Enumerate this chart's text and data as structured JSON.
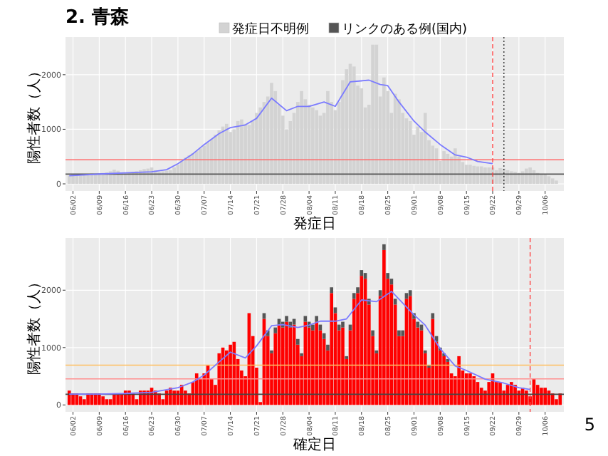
{
  "chart_data": [
    {
      "type": "bar",
      "title": "2. 青森",
      "xlabel": "発症日",
      "ylabel": "陽性者数（人）",
      "legend": "top",
      "grid": true,
      "xlim": [
        "--05-31",
        "--10-11"
      ],
      "ylim": [
        -130,
        2690
      ],
      "yticks": [
        0,
        1000,
        2000
      ],
      "xticks": [
        {
          "value": "--06-02",
          "label": "06/02"
        },
        {
          "value": "--06-09",
          "label": "06/09"
        },
        {
          "value": "--06-16",
          "label": "06/16"
        },
        {
          "value": "--06-23",
          "label": "06/23"
        },
        {
          "value": "--06-30",
          "label": "06/30"
        },
        {
          "value": "--07-07",
          "label": "07/07"
        },
        {
          "value": "--07-14",
          "label": "07/14"
        },
        {
          "value": "--07-21",
          "label": "07/21"
        },
        {
          "value": "--07-28",
          "label": "07/28"
        },
        {
          "value": "--08-04",
          "label": "08/04"
        },
        {
          "value": "--08-11",
          "label": "08/11"
        },
        {
          "value": "--08-18",
          "label": "08/18"
        },
        {
          "value": "--08-25",
          "label": "08/25"
        },
        {
          "value": "--09-01",
          "label": "09/01"
        },
        {
          "value": "--09-08",
          "label": "09/08"
        },
        {
          "value": "--09-15",
          "label": "09/15"
        },
        {
          "value": "--09-22",
          "label": "09/22"
        },
        {
          "value": "--09-29",
          "label": "09/29"
        },
        {
          "value": "--10-06",
          "label": "10/06"
        }
      ],
      "x": [
        "--06-01",
        "--06-02",
        "--06-03",
        "--06-04",
        "--06-05",
        "--06-06",
        "--06-07",
        "--06-08",
        "--06-09",
        "--06-10",
        "--06-11",
        "--06-12",
        "--06-13",
        "--06-14",
        "--06-15",
        "--06-16",
        "--06-17",
        "--06-18",
        "--06-19",
        "--06-20",
        "--06-21",
        "--06-22",
        "--06-23",
        "--06-24",
        "--06-25",
        "--06-26",
        "--06-27",
        "--06-28",
        "--06-29",
        "--06-30",
        "--07-01",
        "--07-02",
        "--07-03",
        "--07-04",
        "--07-05",
        "--07-06",
        "--07-07",
        "--07-08",
        "--07-09",
        "--07-10",
        "--07-11",
        "--07-12",
        "--07-13",
        "--07-14",
        "--07-15",
        "--07-16",
        "--07-17",
        "--07-18",
        "--07-19",
        "--07-20",
        "--07-21",
        "--07-22",
        "--07-23",
        "--07-24",
        "--07-25",
        "--07-26",
        "--07-27",
        "--07-28",
        "--07-29",
        "--07-30",
        "--07-31",
        "--08-01",
        "--08-02",
        "--08-03",
        "--08-04",
        "--08-05",
        "--08-06",
        "--08-07",
        "--08-08",
        "--08-09",
        "--08-10",
        "--08-11",
        "--08-12",
        "--08-13",
        "--08-14",
        "--08-15",
        "--08-16",
        "--08-17",
        "--08-18",
        "--08-19",
        "--08-20",
        "--08-21",
        "--08-22",
        "--08-23",
        "--08-24",
        "--08-25",
        "--08-26",
        "--08-27",
        "--08-28",
        "--08-29",
        "--08-30",
        "--08-31",
        "--09-01",
        "--09-02",
        "--09-03",
        "--09-04",
        "--09-05",
        "--09-06",
        "--09-07",
        "--09-08",
        "--09-09",
        "--09-10",
        "--09-11",
        "--09-12",
        "--09-13",
        "--09-14",
        "--09-15",
        "--09-16",
        "--09-17",
        "--09-18",
        "--09-19",
        "--09-20",
        "--09-21",
        "--09-22",
        "--09-23",
        "--09-24",
        "--09-25",
        "--09-26",
        "--09-27",
        "--09-28",
        "--09-29",
        "--09-30",
        "--10-01",
        "--10-02",
        "--10-03",
        "--10-04",
        "--10-05",
        "--10-06",
        "--10-07",
        "--10-08",
        "--10-09"
      ],
      "series": [
        {
          "name": "発症日不明例",
          "color": "#d3d3d3",
          "values": [
            150,
            170,
            160,
            150,
            170,
            180,
            190,
            170,
            180,
            200,
            210,
            230,
            260,
            240,
            200,
            190,
            210,
            220,
            230,
            250,
            270,
            280,
            300,
            250,
            220,
            230,
            240,
            250,
            300,
            350,
            420,
            480,
            520,
            560,
            600,
            650,
            700,
            760,
            820,
            900,
            980,
            1050,
            1100,
            950,
            1000,
            1150,
            1180,
            1100,
            1080,
            1150,
            1300,
            1400,
            1500,
            1600,
            1850,
            1700,
            1450,
            1250,
            1000,
            1150,
            1300,
            1500,
            1700,
            1550,
            1450,
            1400,
            1350,
            1250,
            1300,
            1700,
            1500,
            1350,
            1500,
            1900,
            2100,
            2200,
            2150,
            1800,
            1750,
            1400,
            1450,
            2550,
            2550,
            1600,
            1950,
            1700,
            1300,
            1650,
            1550,
            1300,
            1200,
            1150,
            900,
            1050,
            950,
            1300,
            800,
            700,
            650,
            420,
            600,
            550,
            500,
            650,
            500,
            400,
            350,
            350,
            330,
            320,
            320,
            300,
            300,
            300,
            250,
            290,
            280,
            250,
            230,
            220,
            200,
            230,
            280,
            300,
            250,
            200,
            180,
            170,
            140,
            100,
            60
          ]
        },
        {
          "type": "line",
          "color": "#7b7bff",
          "x": [
            "--06-01",
            "--06-09",
            "--06-16",
            "--06-23",
            "--06-27",
            "--06-30",
            "--07-04",
            "--07-07",
            "--07-11",
            "--07-14",
            "--07-18",
            "--07-21",
            "--07-25",
            "--07-29",
            "--08-01",
            "--08-04",
            "--08-08",
            "--08-11",
            "--08-15",
            "--08-20",
            "--08-23",
            "--08-25",
            "--08-28",
            "--09-01",
            "--09-04",
            "--09-08",
            "--09-12",
            "--09-15",
            "--09-18",
            "--09-22"
          ],
          "values": [
            150,
            180,
            200,
            220,
            260,
            370,
            550,
            720,
            920,
            1030,
            1080,
            1200,
            1570,
            1340,
            1420,
            1420,
            1500,
            1420,
            1870,
            1900,
            1820,
            1800,
            1500,
            1150,
            950,
            720,
            530,
            490,
            410,
            370
          ]
        }
      ],
      "ref_lines": [
        {
          "axis": "y",
          "value": 442,
          "color": "#ff6a6a"
        },
        {
          "axis": "y",
          "value": 179,
          "color": "#555555"
        },
        {
          "axis": "x",
          "value": "--09-22",
          "color": "#ff4444",
          "line_style": "dashed"
        },
        {
          "axis": "x",
          "value": "--09-25",
          "color": "#333333",
          "line_style": "dotted"
        }
      ]
    },
    {
      "type": "bar",
      "xlabel": "確定日",
      "ylabel": "陽性者数（人）",
      "grid": true,
      "stacked": true,
      "xlim": [
        "--05-31",
        "--10-11"
      ],
      "ylim": [
        -120,
        2910
      ],
      "yticks": [
        0,
        1000,
        2000
      ],
      "xticks": [
        {
          "value": "--06-02",
          "label": "06/02"
        },
        {
          "value": "--06-09",
          "label": "06/09"
        },
        {
          "value": "--06-16",
          "label": "06/16"
        },
        {
          "value": "--06-23",
          "label": "06/23"
        },
        {
          "value": "--06-30",
          "label": "06/30"
        },
        {
          "value": "--07-07",
          "label": "07/07"
        },
        {
          "value": "--07-14",
          "label": "07/14"
        },
        {
          "value": "--07-21",
          "label": "07/21"
        },
        {
          "value": "--07-28",
          "label": "07/28"
        },
        {
          "value": "--08-04",
          "label": "08/04"
        },
        {
          "value": "--08-11",
          "label": "08/11"
        },
        {
          "value": "--08-18",
          "label": "08/18"
        },
        {
          "value": "--08-25",
          "label": "08/25"
        },
        {
          "value": "--09-01",
          "label": "09/01"
        },
        {
          "value": "--09-08",
          "label": "09/08"
        },
        {
          "value": "--09-15",
          "label": "09/15"
        },
        {
          "value": "--09-22",
          "label": "09/22"
        },
        {
          "value": "--09-29",
          "label": "09/29"
        },
        {
          "value": "--10-06",
          "label": "10/06"
        }
      ],
      "x": [
        "--06-01",
        "--06-02",
        "--06-03",
        "--06-04",
        "--06-05",
        "--06-06",
        "--06-07",
        "--06-08",
        "--06-09",
        "--06-10",
        "--06-11",
        "--06-12",
        "--06-13",
        "--06-14",
        "--06-15",
        "--06-16",
        "--06-17",
        "--06-18",
        "--06-19",
        "--06-20",
        "--06-21",
        "--06-22",
        "--06-23",
        "--06-24",
        "--06-25",
        "--06-26",
        "--06-27",
        "--06-28",
        "--06-29",
        "--06-30",
        "--07-01",
        "--07-02",
        "--07-03",
        "--07-04",
        "--07-05",
        "--07-06",
        "--07-07",
        "--07-08",
        "--07-09",
        "--07-10",
        "--07-11",
        "--07-12",
        "--07-13",
        "--07-14",
        "--07-15",
        "--07-16",
        "--07-17",
        "--07-18",
        "--07-19",
        "--07-20",
        "--07-21",
        "--07-22",
        "--07-23",
        "--07-24",
        "--07-25",
        "--07-26",
        "--07-27",
        "--07-28",
        "--07-29",
        "--07-30",
        "--07-31",
        "--08-01",
        "--08-02",
        "--08-03",
        "--08-04",
        "--08-05",
        "--08-06",
        "--08-07",
        "--08-08",
        "--08-09",
        "--08-10",
        "--08-11",
        "--08-12",
        "--08-13",
        "--08-14",
        "--08-15",
        "--08-16",
        "--08-17",
        "--08-18",
        "--08-19",
        "--08-20",
        "--08-21",
        "--08-22",
        "--08-23",
        "--08-24",
        "--08-25",
        "--08-26",
        "--08-27",
        "--08-28",
        "--08-29",
        "--08-30",
        "--08-31",
        "--09-01",
        "--09-02",
        "--09-03",
        "--09-04",
        "--09-05",
        "--09-06",
        "--09-07",
        "--09-08",
        "--09-09",
        "--09-10",
        "--09-11",
        "--09-12",
        "--09-13",
        "--09-14",
        "--09-15",
        "--09-16",
        "--09-17",
        "--09-18",
        "--09-19",
        "--09-20",
        "--09-21",
        "--09-22",
        "--09-23",
        "--09-24",
        "--09-25",
        "--09-26",
        "--09-27",
        "--09-28",
        "--09-29",
        "--09-30",
        "--10-01",
        "--10-02",
        "--10-03",
        "--10-04",
        "--10-05",
        "--10-06",
        "--10-07",
        "--10-08",
        "--10-09",
        "--10-10"
      ],
      "series": [
        {
          "color": "#ff0000",
          "values": [
            250,
            200,
            200,
            150,
            100,
            200,
            200,
            200,
            200,
            150,
            100,
            100,
            200,
            200,
            200,
            250,
            250,
            200,
            100,
            250,
            250,
            250,
            300,
            250,
            200,
            100,
            250,
            300,
            250,
            250,
            350,
            250,
            200,
            400,
            550,
            450,
            550,
            700,
            450,
            350,
            900,
            1000,
            950,
            1050,
            1100,
            800,
            600,
            500,
            1600,
            1200,
            650,
            50,
            1500,
            1200,
            900,
            1250,
            1400,
            1350,
            1450,
            1350,
            1400,
            1050,
            850,
            1450,
            1350,
            1300,
            1450,
            1300,
            1150,
            950,
            1950,
            1600,
            1300,
            1350,
            800,
            1300,
            1850,
            1950,
            2250,
            2200,
            1750,
            1200,
            900,
            1900,
            2700,
            2200,
            2100,
            1750,
            1200,
            1200,
            1850,
            1900,
            1500,
            1350,
            1300,
            900,
            650,
            1500,
            1100,
            950,
            850,
            750,
            550,
            500,
            850,
            600,
            550,
            550,
            500,
            400,
            300,
            250,
            400,
            550,
            400,
            400,
            250,
            350,
            400,
            350,
            250,
            300,
            250,
            150,
            450,
            350,
            300,
            300,
            250,
            200,
            100,
            200
          ]
        },
        {
          "name": "リンクのある例(国内)",
          "color": "#555555",
          "values": [
            0,
            0,
            0,
            0,
            0,
            0,
            0,
            0,
            0,
            0,
            0,
            0,
            0,
            0,
            0,
            0,
            0,
            0,
            0,
            0,
            0,
            0,
            0,
            0,
            0,
            0,
            0,
            0,
            0,
            0,
            0,
            0,
            0,
            0,
            0,
            0,
            0,
            0,
            0,
            0,
            0,
            0,
            0,
            0,
            0,
            0,
            0,
            0,
            0,
            0,
            0,
            0,
            100,
            100,
            50,
            100,
            100,
            100,
            100,
            100,
            100,
            100,
            50,
            100,
            100,
            100,
            100,
            100,
            100,
            100,
            100,
            100,
            100,
            100,
            50,
            100,
            100,
            100,
            100,
            100,
            100,
            100,
            50,
            100,
            100,
            100,
            100,
            100,
            100,
            100,
            100,
            100,
            100,
            100,
            100,
            50,
            50,
            100,
            100,
            50,
            50,
            50,
            0,
            0,
            0,
            0,
            0,
            0,
            0,
            0,
            0,
            0,
            0,
            0,
            0,
            0,
            0,
            0,
            0,
            0,
            0,
            0,
            0,
            0,
            0,
            0,
            0,
            0,
            0,
            0,
            0,
            0
          ]
        },
        {
          "type": "line",
          "color": "#7b7bff",
          "x": [
            "--06-01",
            "--06-09",
            "--06-16",
            "--06-23",
            "--06-30",
            "--07-04",
            "--07-07",
            "--07-11",
            "--07-14",
            "--07-18",
            "--07-21",
            "--07-25",
            "--07-28",
            "--08-01",
            "--08-04",
            "--08-07",
            "--08-11",
            "--08-14",
            "--08-18",
            "--08-22",
            "--08-26",
            "--09-01",
            "--09-04",
            "--09-08",
            "--09-12",
            "--09-15",
            "--09-20",
            "--09-25",
            "--09-29",
            "--10-02"
          ],
          "values": [
            190,
            190,
            200,
            220,
            300,
            400,
            520,
            750,
            920,
            820,
            1030,
            1380,
            1400,
            1350,
            1390,
            1460,
            1460,
            1500,
            1830,
            1800,
            1980,
            1570,
            1390,
            980,
            680,
            600,
            450,
            380,
            300,
            270
          ]
        }
      ],
      "ref_lines": [
        {
          "axis": "y",
          "value": 694,
          "color": "#ffc060"
        },
        {
          "axis": "y",
          "value": 454,
          "color": "#ff9090"
        },
        {
          "axis": "y",
          "value": 186,
          "color": "#444444"
        },
        {
          "axis": "x",
          "value": "--10-02",
          "color": "#ff4444",
          "line_style": "dashed"
        }
      ],
      "annotations": [
        "5"
      ]
    }
  ]
}
